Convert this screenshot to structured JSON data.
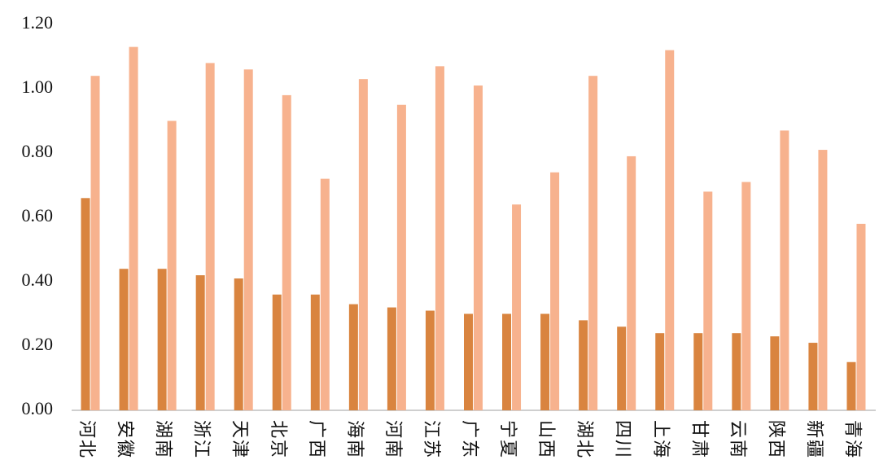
{
  "chart_data": {
    "type": "bar",
    "categories": [
      "河北",
      "安徽",
      "湖南",
      "浙江",
      "天津",
      "北京",
      "广西",
      "海南",
      "河南",
      "江苏",
      "广东",
      "宁夏",
      "山西",
      "湖北",
      "四川",
      "上海",
      "甘肃",
      "云南",
      "陕西",
      "新疆",
      "青海"
    ],
    "series": [
      {
        "color": "#d9843f",
        "values": [
          0.66,
          0.44,
          0.44,
          0.42,
          0.41,
          0.36,
          0.36,
          0.33,
          0.32,
          0.31,
          0.3,
          0.3,
          0.3,
          0.28,
          0.26,
          0.24,
          0.24,
          0.24,
          0.23,
          0.21,
          0.15
        ]
      },
      {
        "color": "#f7b28e",
        "values": [
          1.04,
          1.13,
          0.9,
          1.08,
          1.06,
          0.98,
          0.72,
          1.03,
          0.95,
          1.07,
          1.01,
          0.64,
          0.74,
          1.04,
          0.79,
          1.12,
          0.68,
          0.71,
          0.87,
          0.81,
          0.58
        ]
      }
    ],
    "ylim": [
      0,
      1.2
    ],
    "yticks": [
      {
        "value": 0,
        "label": "0.00"
      },
      {
        "value": 0.2,
        "label": "0.20"
      },
      {
        "value": 0.4,
        "label": "0.40"
      },
      {
        "value": 0.6,
        "label": "0.60"
      },
      {
        "value": 0.8,
        "label": "0.80"
      },
      {
        "value": 1.0,
        "label": "1.00"
      },
      {
        "value": 1.2,
        "label": "1.20"
      }
    ],
    "grid": false
  }
}
